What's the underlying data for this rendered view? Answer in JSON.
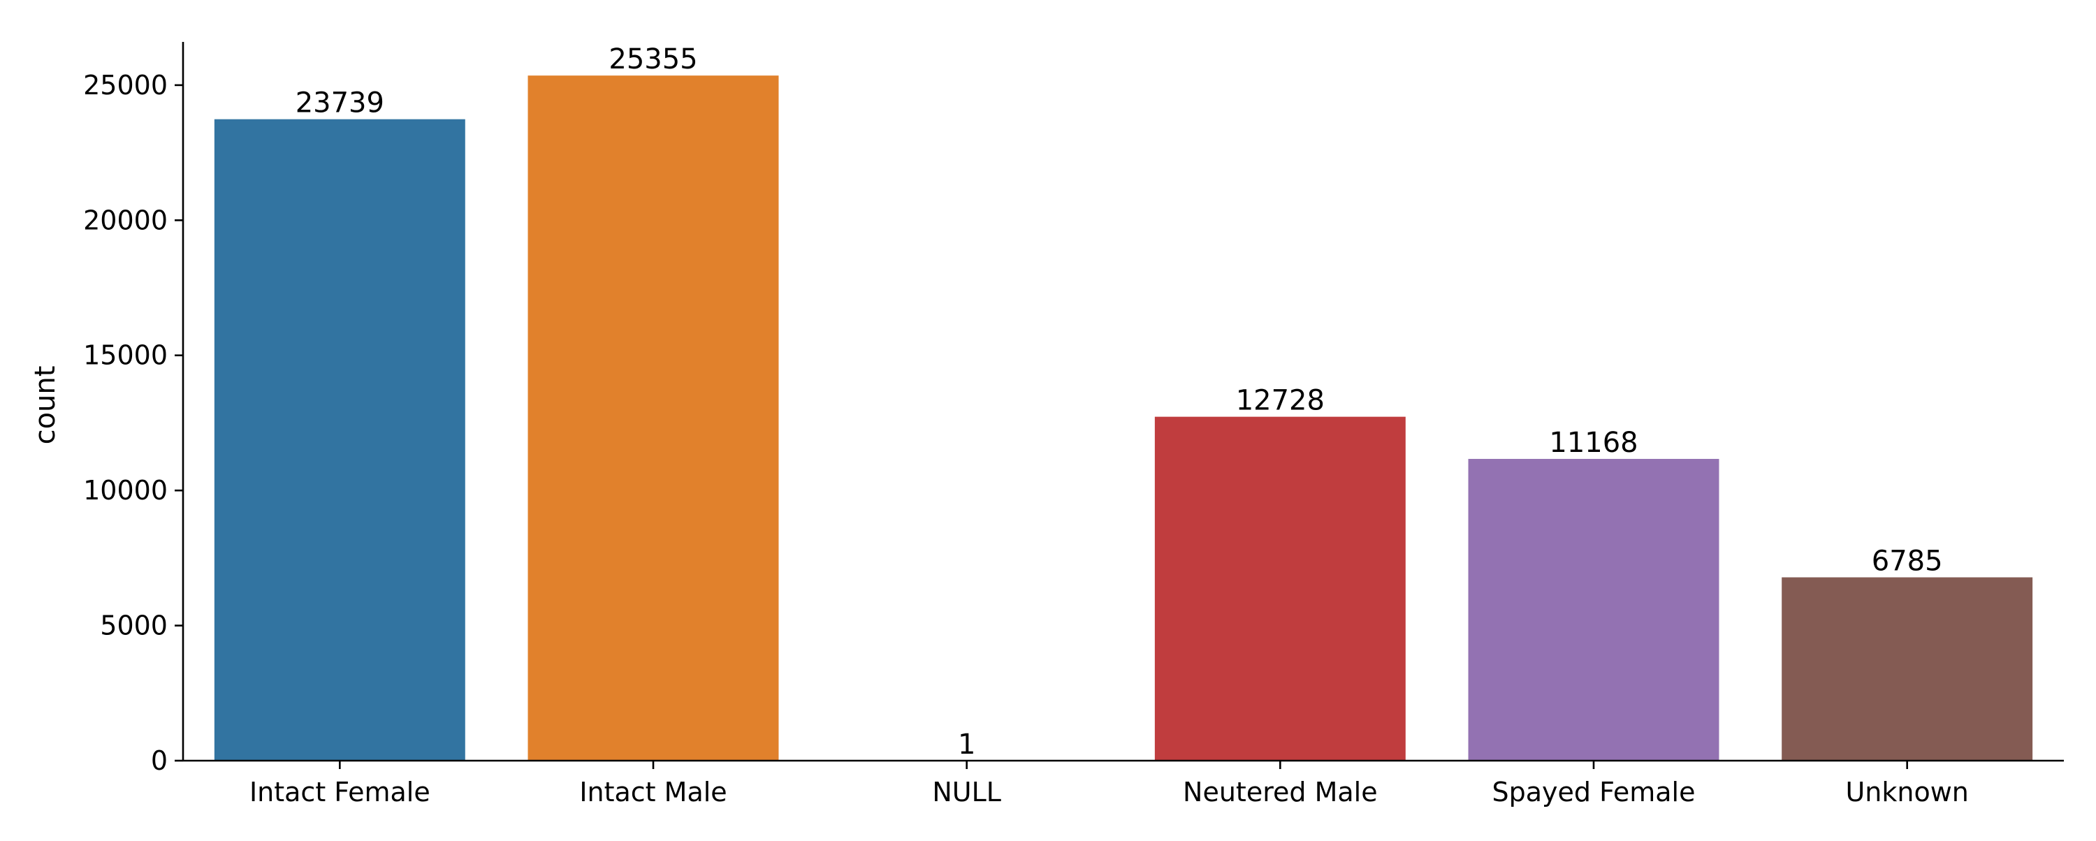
{
  "chart_data": {
    "type": "bar",
    "categories": [
      "Intact Female",
      "Intact Male",
      "NULL",
      "Neutered Male",
      "Spayed Female",
      "Unknown"
    ],
    "values": [
      23739,
      25355,
      1,
      12728,
      11168,
      6785
    ],
    "data_labels": [
      "23739",
      "25355",
      "1",
      "12728",
      "11168",
      "6785"
    ],
    "colors": [
      "#3274a1",
      "#e1812c",
      "#3a923a",
      "#c03d3e",
      "#9372b2",
      "#845b53"
    ],
    "title": "",
    "xlabel": "",
    "ylabel": "count",
    "ylim": [
      0,
      26600
    ],
    "yticks": [
      0,
      5000,
      10000,
      15000,
      20000,
      25000
    ],
    "ytick_labels": [
      "0",
      "5000",
      "10000",
      "15000",
      "20000",
      "25000"
    ],
    "grid": false,
    "legend": "none"
  }
}
